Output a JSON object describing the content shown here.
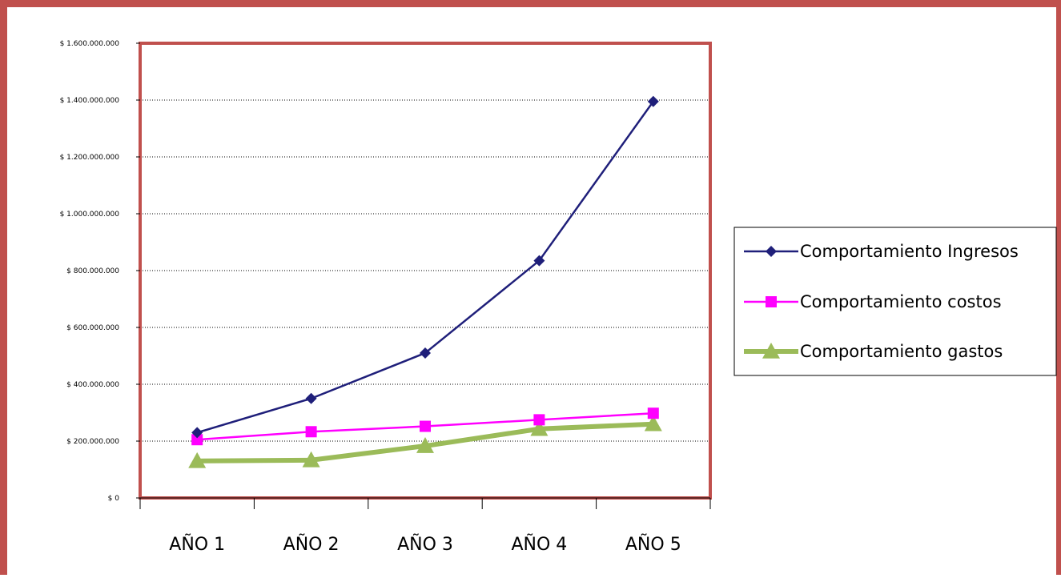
{
  "chart_data": {
    "type": "line",
    "categories": [
      "AÑO 1",
      "AÑO 2",
      "AÑO 3",
      "AÑO 4",
      "AÑO 5"
    ],
    "series": [
      {
        "name": "Comportamiento Ingresos",
        "values": [
          230000000,
          350000000,
          510000000,
          835000000,
          1395000000
        ],
        "color": "#1f1f7a",
        "marker": "diamond"
      },
      {
        "name": "Comportamiento costos",
        "values": [
          205000000,
          233000000,
          252000000,
          275000000,
          298000000
        ],
        "color": "#ff00ff",
        "marker": "square"
      },
      {
        "name": "Comportamiento gastos",
        "values": [
          130000000,
          133000000,
          183000000,
          243000000,
          260000000
        ],
        "color": "#9bbb59",
        "marker": "triangle"
      }
    ],
    "ylim": [
      0,
      1600000000
    ],
    "yticks": [
      0,
      200000000,
      400000000,
      600000000,
      800000000,
      1000000000,
      1200000000,
      1400000000,
      1600000000
    ],
    "ytick_labels": [
      "$ 0",
      "$ 200.000.000",
      "$ 400.000.000",
      "$ 600.000.000",
      "$ 800.000.000",
      "$ 1.000.000.000",
      "$ 1.200.000.000",
      "$ 1.400.000.000",
      "$ 1.600.000.000"
    ],
    "grid": "horizontal-dotted",
    "legend_position": "right",
    "plot_border_color": "#c0504d"
  }
}
